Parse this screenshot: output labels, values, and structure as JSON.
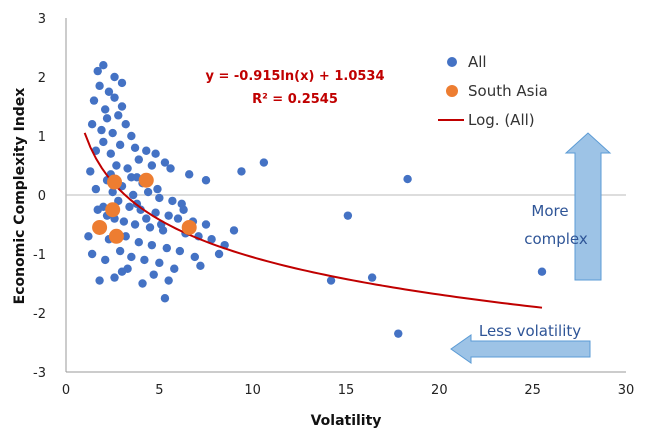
{
  "chart_data": {
    "type": "scatter",
    "xlabel": "Volatility",
    "ylabel": "Economic Complexity Index",
    "xlim": [
      0,
      30
    ],
    "ylim": [
      -3,
      3
    ],
    "x_ticks": [
      "0",
      "5",
      "10",
      "15",
      "20",
      "25",
      "30"
    ],
    "y_ticks": [
      "-3",
      "-2",
      "-1",
      "0",
      "1",
      "2",
      "3"
    ],
    "grid": "horizontal zero line only",
    "legend_position": "top-right",
    "series": [
      {
        "name": "All",
        "color": "#4472c4",
        "points": [
          [
            1.7,
            2.1
          ],
          [
            2.0,
            2.2
          ],
          [
            1.8,
            1.85
          ],
          [
            2.3,
            1.75
          ],
          [
            1.5,
            1.6
          ],
          [
            2.6,
            1.65
          ],
          [
            3.0,
            1.5
          ],
          [
            2.1,
            1.45
          ],
          [
            2.8,
            1.35
          ],
          [
            1.4,
            1.2
          ],
          [
            2.2,
            1.3
          ],
          [
            1.9,
            1.1
          ],
          [
            3.2,
            1.2
          ],
          [
            2.5,
            1.05
          ],
          [
            3.5,
            1.0
          ],
          [
            2.0,
            0.9
          ],
          [
            2.9,
            0.85
          ],
          [
            1.6,
            0.75
          ],
          [
            3.7,
            0.8
          ],
          [
            4.3,
            0.75
          ],
          [
            4.8,
            0.7
          ],
          [
            2.4,
            0.7
          ],
          [
            3.9,
            0.6
          ],
          [
            5.3,
            0.55
          ],
          [
            4.6,
            0.5
          ],
          [
            5.6,
            0.45
          ],
          [
            2.7,
            0.5
          ],
          [
            1.3,
            0.4
          ],
          [
            3.3,
            0.45
          ],
          [
            6.6,
            0.35
          ],
          [
            7.5,
            0.25
          ],
          [
            3.8,
            0.3
          ],
          [
            2.2,
            0.25
          ],
          [
            4.1,
            0.2
          ],
          [
            1.6,
            0.1
          ],
          [
            2.5,
            0.05
          ],
          [
            3.0,
            0.15
          ],
          [
            3.6,
            0.0
          ],
          [
            4.4,
            0.05
          ],
          [
            5.0,
            -0.05
          ],
          [
            5.7,
            -0.1
          ],
          [
            6.2,
            -0.15
          ],
          [
            2.8,
            -0.1
          ],
          [
            2.0,
            -0.2
          ],
          [
            3.4,
            -0.2
          ],
          [
            4.0,
            -0.25
          ],
          [
            4.8,
            -0.3
          ],
          [
            5.5,
            -0.35
          ],
          [
            6.0,
            -0.4
          ],
          [
            6.8,
            -0.45
          ],
          [
            2.6,
            -0.4
          ],
          [
            3.1,
            -0.45
          ],
          [
            3.7,
            -0.5
          ],
          [
            4.5,
            -0.55
          ],
          [
            5.2,
            -0.6
          ],
          [
            6.4,
            -0.65
          ],
          [
            7.1,
            -0.7
          ],
          [
            7.8,
            -0.75
          ],
          [
            1.8,
            -0.6
          ],
          [
            2.3,
            -0.75
          ],
          [
            3.2,
            -0.7
          ],
          [
            3.9,
            -0.8
          ],
          [
            4.6,
            -0.85
          ],
          [
            5.4,
            -0.9
          ],
          [
            6.1,
            -0.95
          ],
          [
            6.9,
            -1.05
          ],
          [
            2.9,
            -0.95
          ],
          [
            3.5,
            -1.05
          ],
          [
            4.2,
            -1.1
          ],
          [
            5.0,
            -1.15
          ],
          [
            5.8,
            -1.25
          ],
          [
            7.2,
            -1.2
          ],
          [
            3.3,
            -1.25
          ],
          [
            4.7,
            -1.35
          ],
          [
            2.6,
            -1.4
          ],
          [
            5.5,
            -1.45
          ],
          [
            4.1,
            -1.5
          ],
          [
            1.8,
            -1.45
          ],
          [
            3.0,
            -1.3
          ],
          [
            5.3,
            -1.75
          ],
          [
            1.4,
            -1.0
          ],
          [
            2.1,
            -1.1
          ],
          [
            2.2,
            -0.35
          ],
          [
            1.7,
            -0.25
          ],
          [
            3.8,
            -0.15
          ],
          [
            4.3,
            -0.4
          ],
          [
            5.1,
            -0.5
          ],
          [
            8.5,
            -0.85
          ],
          [
            9.0,
            -0.6
          ],
          [
            9.4,
            0.4
          ],
          [
            10.6,
            0.55
          ],
          [
            15.1,
            -0.35
          ],
          [
            14.2,
            -1.45
          ],
          [
            16.4,
            -1.4
          ],
          [
            17.8,
            -2.35
          ],
          [
            18.3,
            0.27
          ],
          [
            25.5,
            -1.3
          ],
          [
            8.2,
            -1.0
          ],
          [
            7.5,
            -0.5
          ],
          [
            6.3,
            -0.25
          ],
          [
            3.5,
            0.3
          ],
          [
            2.4,
            0.35
          ],
          [
            4.9,
            0.1
          ],
          [
            1.2,
            -0.7
          ],
          [
            3.0,
            1.9
          ],
          [
            2.6,
            2.0
          ]
        ]
      },
      {
        "name": "South Asia",
        "color": "#ed7d31",
        "points": [
          [
            2.6,
            0.22
          ],
          [
            4.3,
            0.25
          ],
          [
            2.5,
            -0.25
          ],
          [
            1.8,
            -0.55
          ],
          [
            2.7,
            -0.7
          ],
          [
            6.6,
            -0.55
          ]
        ]
      }
    ],
    "trendline": {
      "name": "Log. (All)",
      "color": "#c00000",
      "a": -0.915,
      "b": 1.0534,
      "x_range": [
        1.0,
        25.5
      ]
    },
    "annotations": {
      "equation": "y = -0.915ln(x) + 1.0534",
      "r_squared": "R² = 0.2545",
      "arrow_up_label_1": "More",
      "arrow_up_label_2": "complex",
      "arrow_left_label": "Less volatility"
    }
  },
  "colors": {
    "arrow_fill": "#9dc3e6",
    "arrow_stroke": "#5b9bd5",
    "axis": "#999999"
  }
}
